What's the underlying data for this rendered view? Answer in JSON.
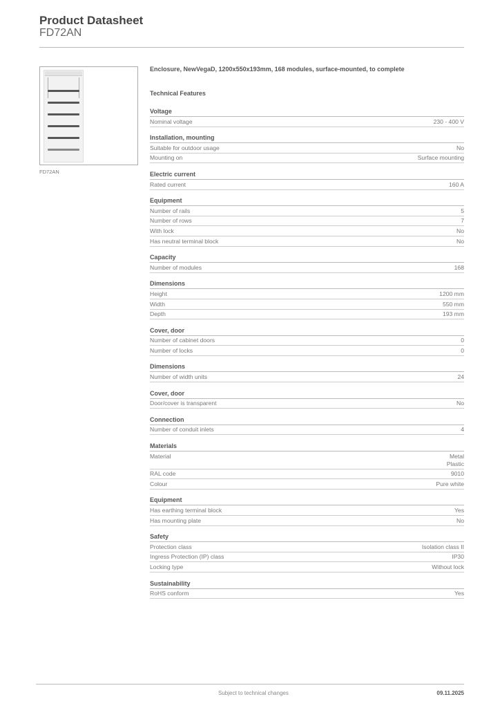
{
  "header": {
    "title": "Product Datasheet",
    "product_code": "FD72AN"
  },
  "image": {
    "caption": "FD72AN"
  },
  "description": "Enclosure, NewVegaD, 1200x550x193mm, 168 modules, surface-mounted, to complete",
  "features_title": "Technical Features",
  "sections": [
    {
      "title": "Voltage",
      "rows": [
        [
          "Nominal voltage",
          "230 - 400 V"
        ]
      ]
    },
    {
      "title": "Installation, mounting",
      "rows": [
        [
          "Suitable for outdoor usage",
          "No"
        ],
        [
          "Mounting on",
          "Surface mounting"
        ]
      ]
    },
    {
      "title": "Electric current",
      "rows": [
        [
          "Rated current",
          "160 A"
        ]
      ]
    },
    {
      "title": "Equipment",
      "rows": [
        [
          "Number of rails",
          "5"
        ],
        [
          "Number of rows",
          "7"
        ],
        [
          "With lock",
          "No"
        ],
        [
          "Has neutral terminal block",
          "No"
        ]
      ]
    },
    {
      "title": "Capacity",
      "rows": [
        [
          "Number of modules",
          "168"
        ]
      ]
    },
    {
      "title": "Dimensions",
      "rows": [
        [
          "Height",
          "1200 mm"
        ],
        [
          "Width",
          "550 mm"
        ],
        [
          "Depth",
          "193 mm"
        ]
      ]
    },
    {
      "title": "Cover, door",
      "rows": [
        [
          "Number of cabinet doors",
          "0"
        ],
        [
          "Number of locks",
          "0"
        ]
      ]
    },
    {
      "title": "Dimensions",
      "rows": [
        [
          "Number of width units",
          "24"
        ]
      ]
    },
    {
      "title": "Cover, door",
      "rows": [
        [
          "Door/cover is transparent",
          "No"
        ]
      ]
    },
    {
      "title": "Connection",
      "rows": [
        [
          "Number of conduit inlets",
          "4"
        ]
      ]
    },
    {
      "title": "Materials",
      "rows": [
        [
          "Material",
          "Metal\nPlastic"
        ],
        [
          "RAL code",
          "9010"
        ],
        [
          "Colour",
          "Pure white"
        ]
      ]
    },
    {
      "title": "Equipment",
      "rows": [
        [
          "Has earthing terminal block",
          "Yes"
        ],
        [
          "Has mounting plate",
          "No"
        ]
      ]
    },
    {
      "title": "Safety",
      "rows": [
        [
          "Protection class",
          "Isolation class II"
        ],
        [
          "Ingress Protection (IP) class",
          "IP30"
        ],
        [
          "Locking type",
          "Without lock"
        ]
      ]
    },
    {
      "title": "Sustainability",
      "rows": [
        [
          "RoHS conform",
          "Yes"
        ]
      ]
    }
  ],
  "footer": {
    "note": "Subject to technical changes",
    "date": "09.11.2025"
  }
}
